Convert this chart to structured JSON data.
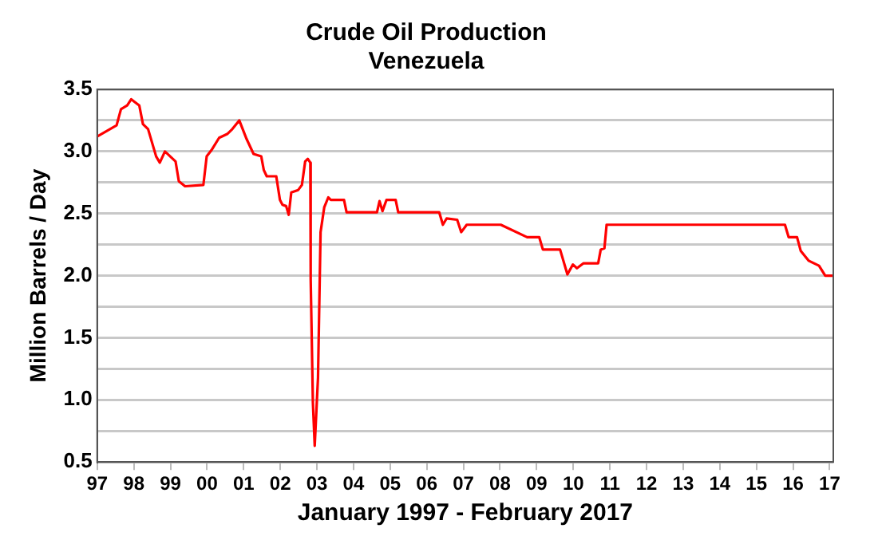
{
  "chart_data": {
    "type": "line",
    "title": "Crude Oil Production",
    "subtitle": "Venezuela",
    "ylabel": "Million Barrels / Day",
    "xlabel": "January 1997 - February 2017",
    "xlim": [
      1997,
      2017.1
    ],
    "xticks": [
      {
        "value": 1997,
        "label": "97"
      },
      {
        "value": 1998,
        "label": "98"
      },
      {
        "value": 1999,
        "label": "99"
      },
      {
        "value": 2000,
        "label": "00"
      },
      {
        "value": 2001,
        "label": "01"
      },
      {
        "value": 2002,
        "label": "02"
      },
      {
        "value": 2003,
        "label": "03"
      },
      {
        "value": 2004,
        "label": "04"
      },
      {
        "value": 2005,
        "label": "05"
      },
      {
        "value": 2006,
        "label": "06"
      },
      {
        "value": 2007,
        "label": "07"
      },
      {
        "value": 2008,
        "label": "08"
      },
      {
        "value": 2009,
        "label": "09"
      },
      {
        "value": 2010,
        "label": "10"
      },
      {
        "value": 2011,
        "label": "11"
      },
      {
        "value": 2012,
        "label": "12"
      },
      {
        "value": 2013,
        "label": "13"
      },
      {
        "value": 2014,
        "label": "14"
      },
      {
        "value": 2015,
        "label": "15"
      },
      {
        "value": 2016,
        "label": "16"
      },
      {
        "value": 2017,
        "label": "17"
      }
    ],
    "ylim": [
      0.5,
      3.5
    ],
    "yticks": [
      {
        "value": 0.5,
        "label": "0.5"
      },
      {
        "value": 0.75,
        "label": null
      },
      {
        "value": 1,
        "label": "1.0"
      },
      {
        "value": 1.25,
        "label": null
      },
      {
        "value": 1.5,
        "label": "1.5"
      },
      {
        "value": 1.75,
        "label": null
      },
      {
        "value": 2,
        "label": "2.0"
      },
      {
        "value": 2.25,
        "label": null
      },
      {
        "value": 2.5,
        "label": "2.5"
      },
      {
        "value": 2.75,
        "label": null
      },
      {
        "value": 3,
        "label": "3.0"
      },
      {
        "value": 3.25,
        "label": null
      },
      {
        "value": 3.5,
        "label": "3.5"
      }
    ],
    "grid": "y",
    "marker": "none",
    "line_style": "solid",
    "legend": false,
    "series": [
      {
        "color": "#ff0000",
        "x": [
          1997.0,
          1997.53,
          1997.65,
          1997.82,
          1997.93,
          1998.15,
          1998.25,
          1998.39,
          1998.61,
          1998.71,
          1998.85,
          1999.14,
          1999.23,
          1999.4,
          1999.9,
          1999.99,
          2000.12,
          2000.33,
          2000.55,
          2000.69,
          2000.88,
          2001.08,
          2001.27,
          2001.48,
          2001.55,
          2001.63,
          2001.89,
          2001.99,
          2002.06,
          2002.16,
          2002.23,
          2002.3,
          2002.49,
          2002.59,
          2002.68,
          2002.75,
          2002.82,
          2002.83,
          2002.89,
          2002.94,
          2003.03,
          2003.1,
          2003.2,
          2003.31,
          2003.38,
          2003.74,
          2003.81,
          2004.64,
          2004.71,
          2004.79,
          2004.9,
          2005.15,
          2005.22,
          2006.34,
          2006.44,
          2006.54,
          2006.83,
          2006.94,
          2007.09,
          2008.02,
          2008.74,
          2009.07,
          2009.17,
          2009.64,
          2009.84,
          2009.99,
          2010.1,
          2010.28,
          2010.68,
          2010.75,
          2010.85,
          2010.91,
          2015.78,
          2015.88,
          2016.11,
          2016.21,
          2016.43,
          2016.71,
          2016.88,
          2017.1
        ],
        "values": [
          3.12,
          3.21,
          3.34,
          3.37,
          3.42,
          3.37,
          3.22,
          3.18,
          2.96,
          2.91,
          3.0,
          2.92,
          2.76,
          2.72,
          2.73,
          2.96,
          3.01,
          3.11,
          3.14,
          3.18,
          3.25,
          3.1,
          2.98,
          2.96,
          2.85,
          2.8,
          2.8,
          2.61,
          2.57,
          2.56,
          2.49,
          2.67,
          2.69,
          2.73,
          2.92,
          2.94,
          2.91,
          1.97,
          0.98,
          0.63,
          1.18,
          2.35,
          2.55,
          2.63,
          2.61,
          2.61,
          2.51,
          2.51,
          2.6,
          2.52,
          2.61,
          2.61,
          2.51,
          2.51,
          2.41,
          2.46,
          2.45,
          2.35,
          2.41,
          2.41,
          2.31,
          2.31,
          2.21,
          2.21,
          2.01,
          2.09,
          2.06,
          2.1,
          2.1,
          2.21,
          2.22,
          2.41,
          2.41,
          2.31,
          2.31,
          2.2,
          2.12,
          2.08,
          2.0,
          2.0
        ]
      }
    ]
  }
}
